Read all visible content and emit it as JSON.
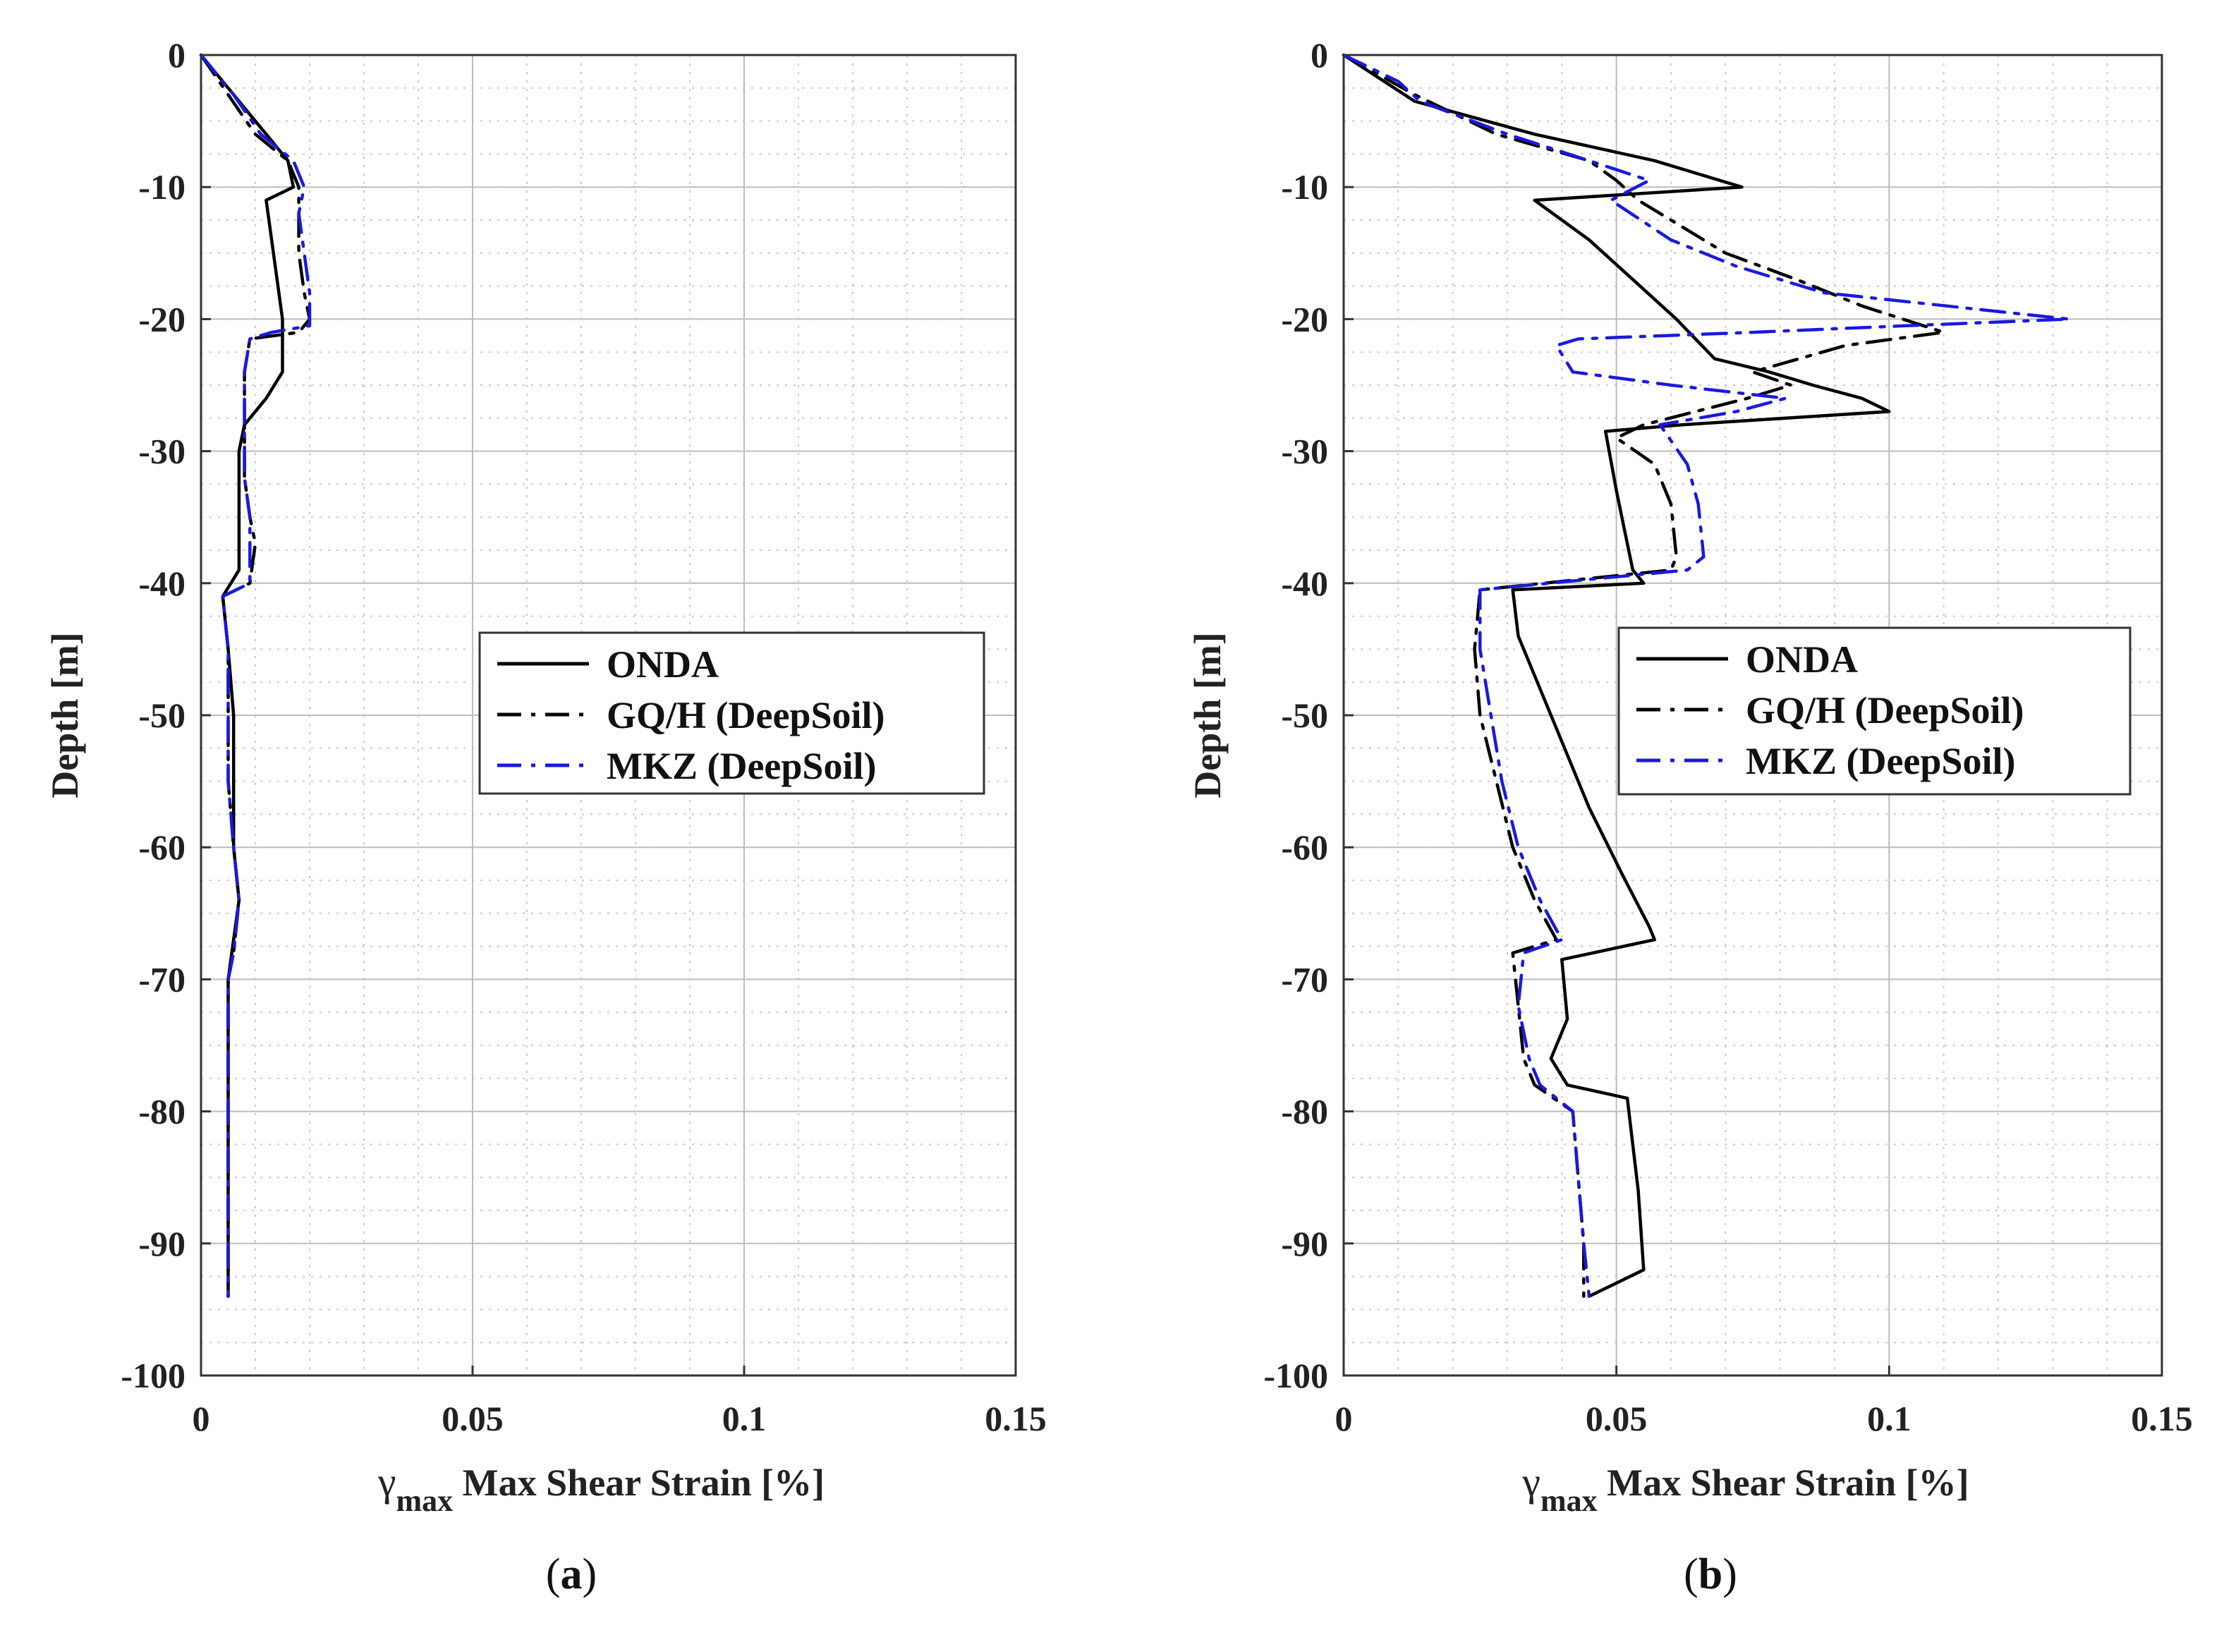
{
  "chart_data": [
    {
      "type": "line",
      "panel_label": "a",
      "xlabel": {
        "symbol": "γ",
        "subscript": "max",
        "text": "Max Shear Strain [%]"
      },
      "ylabel": "Depth [m]",
      "xlim": [
        0,
        0.15
      ],
      "ylim": [
        -100,
        0
      ],
      "xticks": [
        0,
        0.05,
        0.1,
        0.15
      ],
      "xtick_labels": [
        "0",
        "0.05",
        "0.1",
        "0.15"
      ],
      "yticks": [
        0,
        -10,
        -20,
        -30,
        -40,
        -50,
        -60,
        -70,
        -80,
        -90,
        -100
      ],
      "ytick_labels": [
        "0",
        "-10",
        "-20",
        "-30",
        "-40",
        "-50",
        "-60",
        "-70",
        "-80",
        "-90",
        "-100"
      ],
      "grid": true,
      "legend_position": "center-right",
      "series": [
        {
          "name": "ONDA",
          "color": "#000000",
          "style": "solid",
          "points": [
            [
              0,
              0
            ],
            [
              0.004,
              -2
            ],
            [
              0.008,
              -4
            ],
            [
              0.012,
              -6
            ],
            [
              0.016,
              -8
            ],
            [
              0.017,
              -10
            ],
            [
              0.012,
              -11
            ],
            [
              0.013,
              -14
            ],
            [
              0.014,
              -17
            ],
            [
              0.015,
              -20
            ],
            [
              0.015,
              -24
            ],
            [
              0.012,
              -26
            ],
            [
              0.008,
              -28
            ],
            [
              0.007,
              -30
            ],
            [
              0.007,
              -35
            ],
            [
              0.007,
              -39
            ],
            [
              0.004,
              -41
            ],
            [
              0.005,
              -45
            ],
            [
              0.006,
              -50
            ],
            [
              0.006,
              -55
            ],
            [
              0.006,
              -60
            ],
            [
              0.007,
              -64
            ],
            [
              0.006,
              -67
            ],
            [
              0.005,
              -70
            ],
            [
              0.005,
              -75
            ],
            [
              0.005,
              -80
            ],
            [
              0.005,
              -85
            ],
            [
              0.005,
              -90
            ],
            [
              0.005,
              -94
            ]
          ]
        },
        {
          "name": "GQ/H (DeepSoil)",
          "color": "#000000",
          "style": "dashdot",
          "points": [
            [
              0,
              0
            ],
            [
              0.005,
              -3
            ],
            [
              0.01,
              -6
            ],
            [
              0.016,
              -8
            ],
            [
              0.018,
              -10
            ],
            [
              0.018,
              -12
            ],
            [
              0.018,
              -15
            ],
            [
              0.019,
              -18
            ],
            [
              0.02,
              -20
            ],
            [
              0.018,
              -21
            ],
            [
              0.009,
              -21.5
            ],
            [
              0.008,
              -24
            ],
            [
              0.008,
              -28
            ],
            [
              0.008,
              -32
            ],
            [
              0.009,
              -35
            ],
            [
              0.01,
              -37
            ],
            [
              0.009,
              -40
            ],
            [
              0.004,
              -41
            ],
            [
              0.005,
              -45
            ],
            [
              0.005,
              -50
            ],
            [
              0.005,
              -55
            ],
            [
              0.006,
              -60
            ],
            [
              0.007,
              -64
            ],
            [
              0.006,
              -68
            ],
            [
              0.005,
              -70
            ],
            [
              0.005,
              -75
            ],
            [
              0.005,
              -80
            ],
            [
              0.005,
              -85
            ],
            [
              0.005,
              -90
            ],
            [
              0.005,
              -94
            ]
          ]
        },
        {
          "name": "MKZ (DeepSoil)",
          "color": "#1a1adb",
          "style": "dashdot",
          "points": [
            [
              0,
              0
            ],
            [
              0.006,
              -3
            ],
            [
              0.011,
              -6
            ],
            [
              0.017,
              -8
            ],
            [
              0.019,
              -10
            ],
            [
              0.018,
              -12
            ],
            [
              0.019,
              -15
            ],
            [
              0.02,
              -18
            ],
            [
              0.02,
              -20.5
            ],
            [
              0.013,
              -21
            ],
            [
              0.009,
              -21.5
            ],
            [
              0.008,
              -24
            ],
            [
              0.008,
              -28
            ],
            [
              0.008,
              -32
            ],
            [
              0.009,
              -35
            ],
            [
              0.009,
              -37
            ],
            [
              0.009,
              -40
            ],
            [
              0.004,
              -41
            ],
            [
              0.005,
              -45
            ],
            [
              0.005,
              -50
            ],
            [
              0.005,
              -55
            ],
            [
              0.006,
              -60
            ],
            [
              0.007,
              -64
            ],
            [
              0.006,
              -68
            ],
            [
              0.005,
              -70
            ],
            [
              0.005,
              -75
            ],
            [
              0.005,
              -80
            ],
            [
              0.005,
              -85
            ],
            [
              0.005,
              -90
            ],
            [
              0.005,
              -94
            ]
          ]
        }
      ]
    },
    {
      "type": "line",
      "panel_label": "b",
      "xlabel": {
        "symbol": "γ",
        "subscript": "max",
        "text": "Max Shear Strain [%]"
      },
      "ylabel": "Depth [m]",
      "xlim": [
        0,
        0.15
      ],
      "ylim": [
        -100,
        0
      ],
      "xticks": [
        0,
        0.05,
        0.1,
        0.15
      ],
      "xtick_labels": [
        "0",
        "0.05",
        "0.1",
        "0.15"
      ],
      "yticks": [
        0,
        -10,
        -20,
        -30,
        -40,
        -50,
        -60,
        -70,
        -80,
        -90,
        -100
      ],
      "ytick_labels": [
        "0",
        "-10",
        "-20",
        "-30",
        "-40",
        "-50",
        "-60",
        "-70",
        "-80",
        "-90",
        "-100"
      ],
      "grid": true,
      "legend_position": "center-right",
      "series": [
        {
          "name": "ONDA",
          "color": "#000000",
          "style": "solid",
          "points": [
            [
              0,
              0
            ],
            [
              0.013,
              -3.5
            ],
            [
              0.035,
              -6
            ],
            [
              0.057,
              -8
            ],
            [
              0.073,
              -10
            ],
            [
              0.035,
              -11
            ],
            [
              0.045,
              -14
            ],
            [
              0.053,
              -17
            ],
            [
              0.061,
              -20
            ],
            [
              0.068,
              -23
            ],
            [
              0.078,
              -24
            ],
            [
              0.086,
              -25
            ],
            [
              0.095,
              -26
            ],
            [
              0.1,
              -27
            ],
            [
              0.062,
              -28
            ],
            [
              0.048,
              -28.5
            ],
            [
              0.05,
              -33
            ],
            [
              0.052,
              -37
            ],
            [
              0.053,
              -39
            ],
            [
              0.055,
              -40
            ],
            [
              0.031,
              -40.5
            ],
            [
              0.032,
              -44
            ],
            [
              0.035,
              -47
            ],
            [
              0.038,
              -50
            ],
            [
              0.041,
              -53
            ],
            [
              0.045,
              -57
            ],
            [
              0.051,
              -62
            ],
            [
              0.056,
              -66
            ],
            [
              0.057,
              -67
            ],
            [
              0.04,
              -68.5
            ],
            [
              0.041,
              -73
            ],
            [
              0.038,
              -76
            ],
            [
              0.041,
              -78
            ],
            [
              0.052,
              -79
            ],
            [
              0.054,
              -86
            ],
            [
              0.055,
              -92
            ],
            [
              0.045,
              -94
            ]
          ]
        },
        {
          "name": "GQ/H (DeepSoil)",
          "color": "#000000",
          "style": "dashdot",
          "points": [
            [
              0,
              0
            ],
            [
              0.013,
              -3
            ],
            [
              0.028,
              -6
            ],
            [
              0.045,
              -8
            ],
            [
              0.05,
              -9.5
            ],
            [
              0.054,
              -11
            ],
            [
              0.07,
              -15
            ],
            [
              0.083,
              -17
            ],
            [
              0.095,
              -19
            ],
            [
              0.11,
              -21
            ],
            [
              0.092,
              -22
            ],
            [
              0.075,
              -24
            ],
            [
              0.082,
              -25
            ],
            [
              0.074,
              -26
            ],
            [
              0.055,
              -28
            ],
            [
              0.05,
              -29
            ],
            [
              0.057,
              -31
            ],
            [
              0.06,
              -34
            ],
            [
              0.061,
              -38
            ],
            [
              0.06,
              -39
            ],
            [
              0.025,
              -40.5
            ],
            [
              0.024,
              -45
            ],
            [
              0.025,
              -50
            ],
            [
              0.028,
              -55
            ],
            [
              0.031,
              -60
            ],
            [
              0.035,
              -64
            ],
            [
              0.039,
              -67
            ],
            [
              0.031,
              -68
            ],
            [
              0.032,
              -72
            ],
            [
              0.033,
              -76
            ],
            [
              0.035,
              -78
            ],
            [
              0.042,
              -80
            ],
            [
              0.043,
              -85
            ],
            [
              0.044,
              -90
            ],
            [
              0.044,
              -94
            ]
          ]
        },
        {
          "name": "MKZ (DeepSoil)",
          "color": "#1a1adb",
          "style": "dashdot",
          "points": [
            [
              0,
              0
            ],
            [
              0.01,
              -2
            ],
            [
              0.014,
              -3.5
            ],
            [
              0.03,
              -6
            ],
            [
              0.045,
              -8
            ],
            [
              0.056,
              -9.5
            ],
            [
              0.049,
              -11
            ],
            [
              0.06,
              -14
            ],
            [
              0.072,
              -16
            ],
            [
              0.088,
              -18
            ],
            [
              0.133,
              -20
            ],
            [
              0.103,
              -20.5
            ],
            [
              0.075,
              -21
            ],
            [
              0.043,
              -21.5
            ],
            [
              0.039,
              -22
            ],
            [
              0.042,
              -24
            ],
            [
              0.06,
              -25
            ],
            [
              0.081,
              -26
            ],
            [
              0.072,
              -27
            ],
            [
              0.058,
              -28
            ],
            [
              0.063,
              -31
            ],
            [
              0.065,
              -34
            ],
            [
              0.066,
              -38
            ],
            [
              0.063,
              -39
            ],
            [
              0.025,
              -40.5
            ],
            [
              0.025,
              -45
            ],
            [
              0.027,
              -50
            ],
            [
              0.029,
              -55
            ],
            [
              0.032,
              -60
            ],
            [
              0.036,
              -64
            ],
            [
              0.04,
              -67
            ],
            [
              0.033,
              -68
            ],
            [
              0.032,
              -72
            ],
            [
              0.034,
              -76
            ],
            [
              0.036,
              -78
            ],
            [
              0.042,
              -80
            ],
            [
              0.043,
              -85
            ],
            [
              0.044,
              -90
            ],
            [
              0.045,
              -94
            ]
          ]
        }
      ]
    }
  ]
}
